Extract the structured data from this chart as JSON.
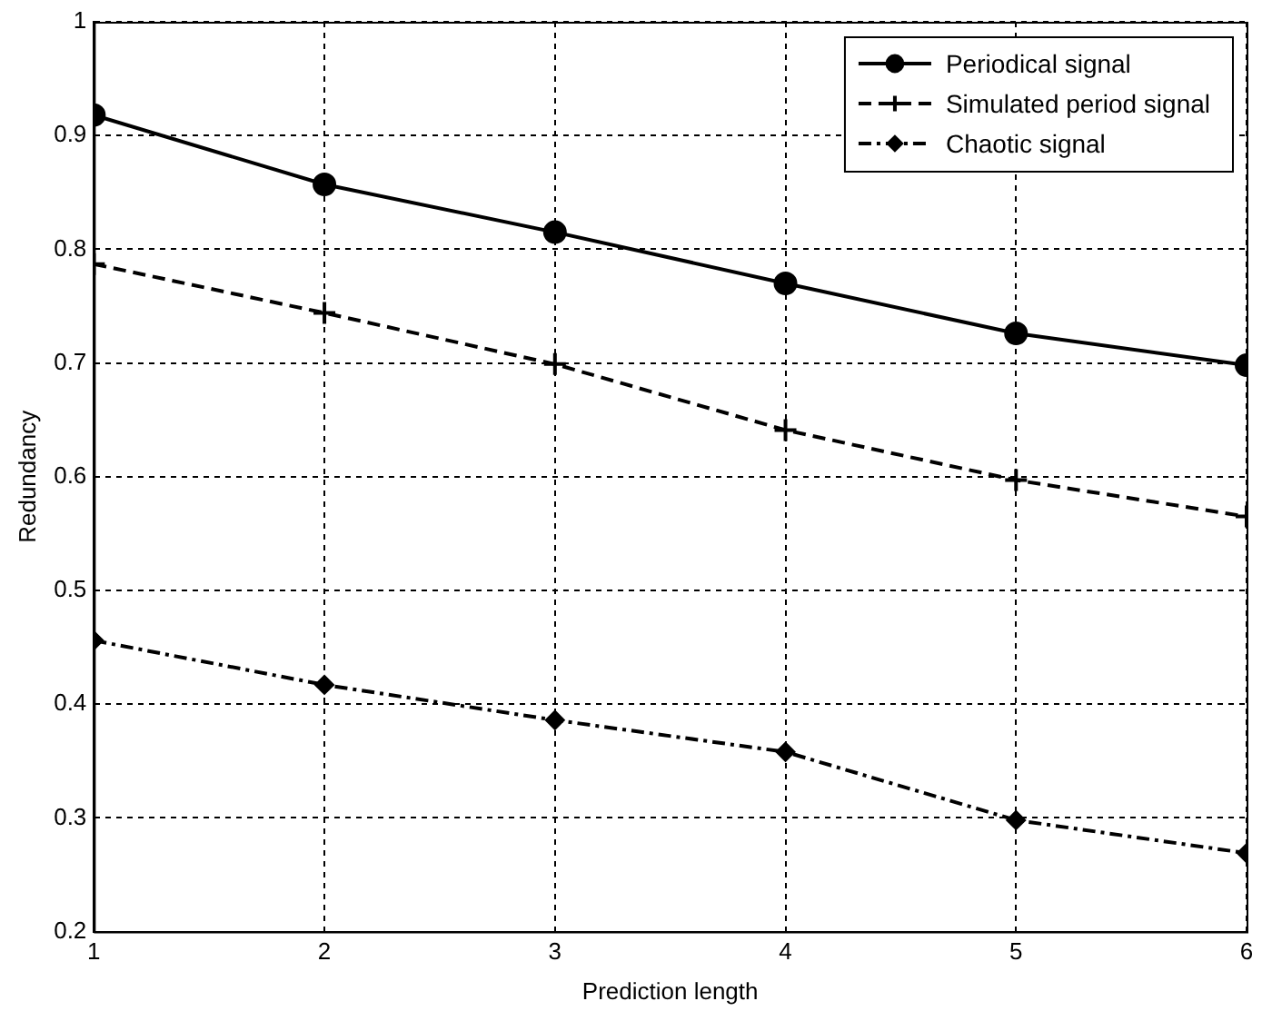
{
  "chart_data": {
    "type": "line",
    "xlabel": "Prediction length",
    "ylabel": "Redundancy",
    "x": [
      1,
      2,
      3,
      4,
      5,
      6
    ],
    "series": [
      {
        "name": "Periodical signal",
        "color": "#000000",
        "marker": "circle",
        "line_style": "solid",
        "values": [
          0.918,
          0.857,
          0.815,
          0.77,
          0.726,
          0.698
        ]
      },
      {
        "name": "Simulated period signal",
        "color": "#000000",
        "marker": "cross",
        "line_style": "dashed",
        "values": [
          0.787,
          0.744,
          0.699,
          0.641,
          0.597,
          0.565
        ]
      },
      {
        "name": "Chaotic signal",
        "color": "#000000",
        "marker": "diamond",
        "line_style": "dashdot",
        "values": [
          0.456,
          0.417,
          0.386,
          0.358,
          0.298,
          0.269
        ]
      }
    ],
    "xlim": [
      1,
      6
    ],
    "xticks": [
      1,
      2,
      3,
      4,
      5,
      6
    ],
    "ylim": [
      0.2,
      1
    ],
    "yticks": [
      0.2,
      0.3,
      0.4,
      0.5,
      0.6,
      0.7,
      0.8,
      0.9,
      1
    ],
    "grid": true,
    "legend": "top right"
  }
}
